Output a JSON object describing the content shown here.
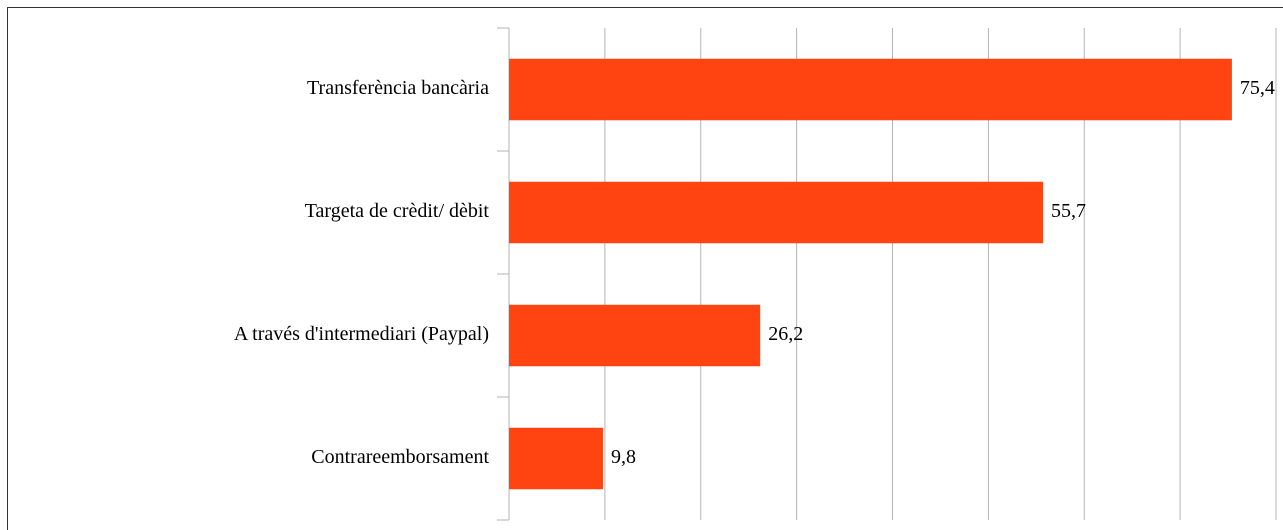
{
  "chart_data": {
    "type": "bar",
    "orientation": "horizontal",
    "categories": [
      "Transferència bancària",
      "Targeta de crèdit/ dèbit",
      "A través d'intermediari (Paypal)",
      "Contrareemborsament"
    ],
    "values": [
      75.4,
      55.7,
      26.2,
      9.8
    ],
    "value_labels": [
      "75,4",
      "55,7",
      "26,2",
      "9,8"
    ],
    "color": "#ff4411",
    "xlim": [
      0,
      80
    ],
    "xticks": [
      10,
      20,
      30,
      40,
      50,
      60,
      70,
      80
    ],
    "tick_labels_shown": false,
    "grid": true
  }
}
